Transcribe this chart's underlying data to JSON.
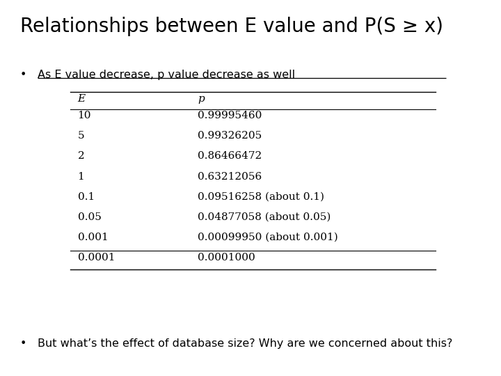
{
  "title": "Relationships between E value and P(S ≥ x)",
  "bullet1_plain": "As E value decrease, p value decrease as well",
  "table_headers": [
    "E",
    "p"
  ],
  "table_rows_body": [
    [
      "10",
      "0.99995460"
    ],
    [
      "5",
      "0.99326205"
    ],
    [
      "2",
      "0.86466472"
    ],
    [
      "1",
      "0.63212056"
    ],
    [
      "0.1",
      "0.09516258 (about 0.1)"
    ],
    [
      "0.05",
      "0.04877058 (about 0.05)"
    ],
    [
      "0.001",
      "0.00099950 (about 0.001)"
    ]
  ],
  "table_last_row": [
    "0.0001",
    "0.0001000"
  ],
  "bullet2": "But what’s the effect of database size? Why are we concerned about this?",
  "bg_color": "#ffffff",
  "text_color": "#000000",
  "title_fontsize": 20,
  "bullet_fontsize": 11.5,
  "table_fontsize": 11
}
